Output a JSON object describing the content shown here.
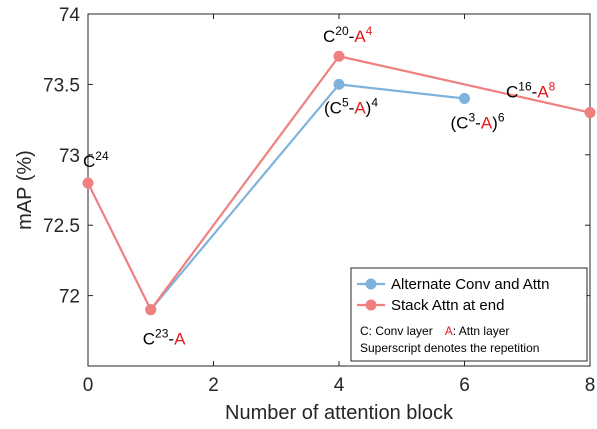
{
  "chart_data": {
    "type": "line",
    "xlabel": "Number of attention block",
    "ylabel": "mAP (%)",
    "xlim": [
      0,
      8
    ],
    "ylim": [
      71.5,
      74
    ],
    "xticks": [
      "0",
      "2",
      "4",
      "6",
      "8"
    ],
    "yticks": [
      "72",
      "72.5",
      "73",
      "73.5",
      "74"
    ],
    "grid": false,
    "legend_position": "lower-right",
    "series": [
      {
        "name": "Alternate Conv and Attn",
        "color": "#7fb3dc",
        "x": [
          1,
          4,
          6
        ],
        "y": [
          71.9,
          73.5,
          73.4
        ]
      },
      {
        "name": "Stack Attn at end",
        "color": "#f07f7f",
        "x": [
          0,
          1,
          4,
          8
        ],
        "y": [
          72.8,
          71.9,
          73.7,
          73.3
        ]
      }
    ],
    "annotations": [
      {
        "base": "C",
        "sup": "24",
        "x": 0,
        "y": 72.8
      },
      {
        "base": "C",
        "sup": "23",
        "attn": "A",
        "x": 1,
        "y": 71.9
      },
      {
        "base": "C",
        "sup": "20",
        "attn": "A",
        "attn_sup": "4",
        "x": 4,
        "y": 73.7
      },
      {
        "base": "C",
        "sup": "5",
        "attn": "A",
        "group_sup": "4",
        "x": 4,
        "y": 73.5
      },
      {
        "base": "C",
        "sup": "3",
        "attn": "A",
        "group_sup": "6",
        "x": 6,
        "y": 73.4
      },
      {
        "base": "C",
        "sup": "16",
        "attn": "A",
        "attn_sup": "8",
        "x": 8,
        "y": 73.3
      }
    ],
    "legend_note": {
      "conv_letter": "C",
      "conv_desc": ": Conv layer",
      "attn_letter": "A",
      "attn_desc": ": Attn layer",
      "line2": "Superscript denotes the repetition"
    },
    "attn_color": "#e8191e"
  }
}
